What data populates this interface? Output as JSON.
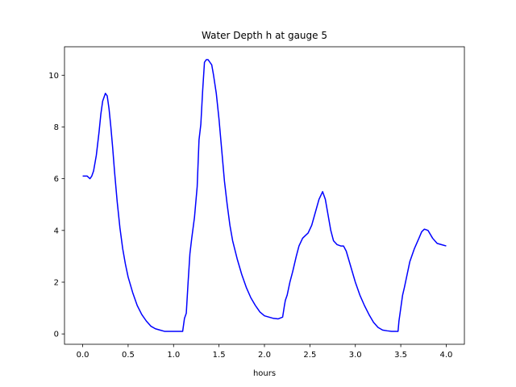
{
  "chart_data": {
    "type": "line",
    "title": "Water Depth h at gauge 5",
    "xlabel": "hours",
    "ylabel": "",
    "xlim": [
      -0.2,
      4.2
    ],
    "ylim": [
      -0.4,
      11.1
    ],
    "xticks": [
      0.0,
      0.5,
      1.0,
      1.5,
      2.0,
      2.5,
      3.0,
      3.5,
      4.0
    ],
    "xtick_labels": [
      "0.0",
      "0.5",
      "1.0",
      "1.5",
      "2.0",
      "2.5",
      "3.0",
      "3.5",
      "4.0"
    ],
    "yticks": [
      0,
      2,
      4,
      6,
      8,
      10
    ],
    "ytick_labels": [
      "0",
      "2",
      "4",
      "6",
      "8",
      "10"
    ],
    "grid": false,
    "series": [
      {
        "color": "#0000ff",
        "x": [
          0.0,
          0.05,
          0.08,
          0.1,
          0.12,
          0.15,
          0.18,
          0.2,
          0.22,
          0.25,
          0.27,
          0.29,
          0.31,
          0.33,
          0.35,
          0.38,
          0.41,
          0.44,
          0.47,
          0.5,
          0.55,
          0.6,
          0.65,
          0.7,
          0.75,
          0.8,
          0.85,
          0.9,
          0.95,
          1.0,
          1.05,
          1.1,
          1.12,
          1.14,
          1.16,
          1.18,
          1.2,
          1.23,
          1.26,
          1.28,
          1.3,
          1.32,
          1.34,
          1.36,
          1.38,
          1.4,
          1.42,
          1.44,
          1.47,
          1.5,
          1.53,
          1.56,
          1.59,
          1.62,
          1.65,
          1.7,
          1.75,
          1.8,
          1.85,
          1.9,
          1.95,
          2.0,
          2.05,
          2.1,
          2.15,
          2.2,
          2.22,
          2.23,
          2.25,
          2.28,
          2.31,
          2.35,
          2.38,
          2.42,
          2.45,
          2.48,
          2.52,
          2.56,
          2.6,
          2.64,
          2.67,
          2.7,
          2.73,
          2.76,
          2.8,
          2.84,
          2.87,
          2.9,
          2.95,
          3.0,
          3.05,
          3.1,
          3.15,
          3.2,
          3.25,
          3.3,
          3.35,
          3.4,
          3.45,
          3.47,
          3.48,
          3.5,
          3.52,
          3.54,
          3.57,
          3.6,
          3.65,
          3.7,
          3.73,
          3.76,
          3.8,
          3.85,
          3.9,
          3.95,
          4.0
        ],
        "y": [
          6.1,
          6.1,
          6.0,
          6.1,
          6.3,
          6.9,
          7.8,
          8.5,
          9.0,
          9.3,
          9.2,
          8.7,
          8.0,
          7.2,
          6.3,
          5.1,
          4.1,
          3.3,
          2.7,
          2.2,
          1.6,
          1.1,
          0.75,
          0.5,
          0.3,
          0.2,
          0.15,
          0.1,
          0.1,
          0.1,
          0.1,
          0.1,
          0.6,
          0.8,
          2.0,
          3.1,
          3.7,
          4.5,
          5.7,
          7.5,
          8.1,
          9.4,
          10.5,
          10.6,
          10.6,
          10.5,
          10.4,
          10.0,
          9.3,
          8.3,
          7.1,
          5.9,
          5.0,
          4.2,
          3.6,
          2.9,
          2.3,
          1.8,
          1.4,
          1.1,
          0.85,
          0.7,
          0.65,
          0.6,
          0.58,
          0.65,
          1.1,
          1.3,
          1.5,
          2.0,
          2.4,
          3.0,
          3.4,
          3.7,
          3.8,
          3.9,
          4.2,
          4.7,
          5.2,
          5.5,
          5.2,
          4.6,
          4.0,
          3.6,
          3.45,
          3.4,
          3.4,
          3.2,
          2.6,
          2.0,
          1.5,
          1.1,
          0.75,
          0.45,
          0.25,
          0.15,
          0.12,
          0.1,
          0.1,
          0.1,
          0.5,
          1.0,
          1.5,
          1.8,
          2.3,
          2.8,
          3.3,
          3.7,
          3.95,
          4.05,
          4.0,
          3.7,
          3.5,
          3.45,
          3.4
        ]
      }
    ]
  }
}
